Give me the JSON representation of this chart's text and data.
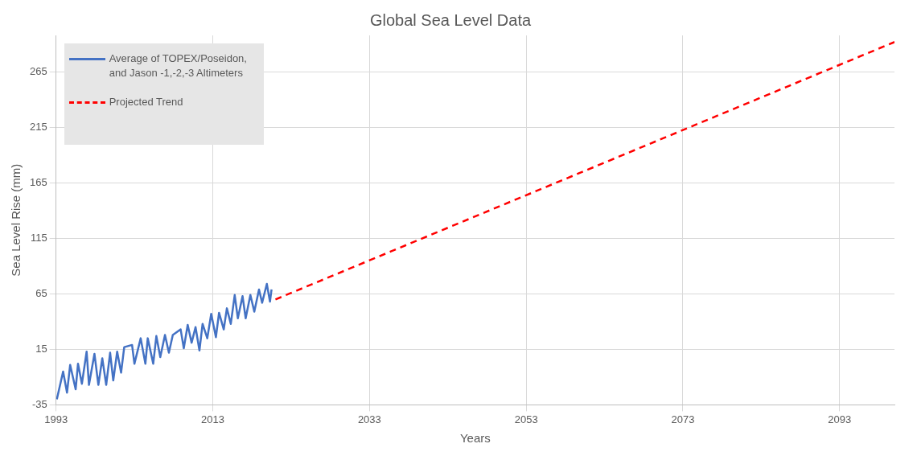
{
  "chart_data": {
    "type": "line",
    "title": "Global Sea Level Data",
    "xlabel": "Years",
    "ylabel": "Sea Level Rise (mm)",
    "xlim": [
      1993,
      2100
    ],
    "xticks": [
      1993,
      2013,
      2033,
      2053,
      2073,
      2093
    ],
    "ylim": [
      -35,
      298
    ],
    "yticks": [
      -35,
      15,
      65,
      115,
      165,
      215,
      265
    ],
    "grid": true,
    "legend": "top left",
    "series": [
      {
        "name": "Average of TOPEX/Poseidon, and Jason -1,-2,-3 Altimeters",
        "color": "#4472c4",
        "line_style": "solid",
        "x": [
          1993.1,
          1993.9,
          1994.4,
          1994.8,
          1995.5,
          1995.8,
          1996.3,
          1996.9,
          1997.2,
          1997.9,
          1998.4,
          1998.9,
          1999.4,
          1999.9,
          2000.3,
          2000.8,
          2001.3,
          2001.7,
          2002.7,
          2003.0,
          2003.8,
          2004.4,
          2004.7,
          2005.4,
          2005.8,
          2006.3,
          2006.9,
          2007.4,
          2007.9,
          2008.9,
          2009.3,
          2009.8,
          2010.3,
          2010.8,
          2011.3,
          2011.7,
          2012.3,
          2012.8,
          2013.4,
          2013.8,
          2014.4,
          2014.8,
          2015.3,
          2015.8,
          2016.2,
          2016.8,
          2017.2,
          2017.8,
          2018.3,
          2018.9,
          2019.3,
          2019.9,
          2020.3,
          2020.5
        ],
        "values": [
          -30,
          -5,
          -24,
          1,
          -21,
          2,
          -16,
          13,
          -17,
          11,
          -17,
          7,
          -17,
          12,
          -13,
          13,
          -6,
          17,
          19,
          2,
          25,
          2,
          25,
          2,
          27,
          8,
          28,
          12,
          28,
          33,
          16,
          37,
          21,
          35,
          14,
          38,
          25,
          47,
          26,
          48,
          33,
          52,
          38,
          64,
          43,
          63,
          43,
          64,
          49,
          69,
          57,
          74,
          58,
          69
        ]
      },
      {
        "name": "Projected Trend",
        "color": "#ff0000",
        "line_style": "dashed",
        "x": [
          2021,
          2100
        ],
        "values": [
          60,
          292
        ]
      }
    ]
  }
}
